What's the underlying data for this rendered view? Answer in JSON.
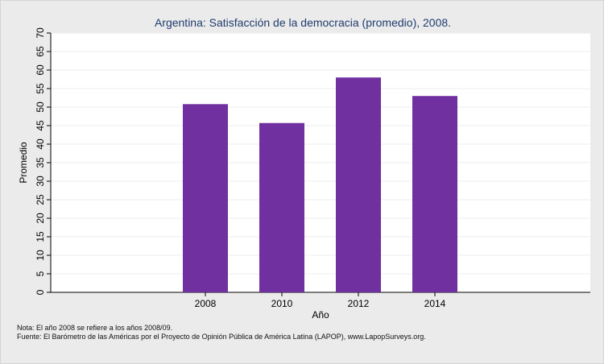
{
  "chart_data": {
    "type": "bar",
    "title": "Argentina: Satisfacción de la democracia (promedio), 2008.",
    "xlabel": "Año",
    "ylabel": "Promedio",
    "categories": [
      "2008",
      "2010",
      "2012",
      "2014"
    ],
    "values": [
      50.8,
      45.7,
      58.0,
      53.0
    ],
    "ylim": [
      0,
      70
    ],
    "yticks": [
      0,
      5,
      10,
      15,
      20,
      25,
      30,
      35,
      40,
      45,
      50,
      55,
      60,
      65,
      70
    ],
    "bar_color": "#7030a0",
    "grid": true,
    "legend": "none"
  },
  "notes": {
    "nota": "Nota: El año 2008 se refiere a los años 2008/09.",
    "fuente": "Fuente: El Barómetro de las Américas por el Proyecto de Opinión Pública de América Latina (LAPOP), www.LapopSurveys.org."
  }
}
